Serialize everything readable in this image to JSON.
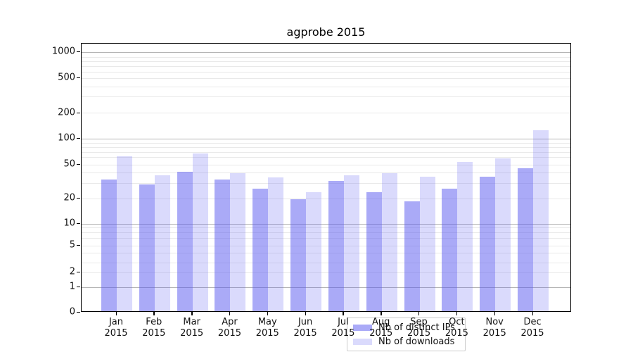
{
  "chart_data": {
    "type": "bar",
    "title": "agprobe 2015",
    "categories": [
      "Jan\n2015",
      "Feb\n2015",
      "Mar\n2015",
      "Apr\n2015",
      "May\n2015",
      "Jun\n2015",
      "Jul\n2015",
      "Aug\n2015",
      "Sep\n2015",
      "Oct\n2015",
      "Nov\n2015",
      "Dec\n2015"
    ],
    "series": [
      {
        "name": "Nb of distinct IPs",
        "color": "rgba(85,85,240,0.50)",
        "values": [
          32,
          28,
          40,
          32,
          25,
          19,
          31,
          23,
          18,
          25,
          35,
          44
        ]
      },
      {
        "name": "Nb of downloads",
        "color": "rgba(85,85,240,0.22)",
        "values": [
          60,
          36,
          65,
          38,
          34,
          23,
          36,
          38,
          35,
          52,
          57,
          120
        ]
      }
    ],
    "xlabel": "",
    "ylabel": "",
    "yscale": "log (symlog near zero)",
    "ylim": [
      0,
      1400
    ],
    "yticks": [
      "1000",
      "500",
      "200",
      "100",
      "50",
      "20",
      "10",
      "5",
      "2",
      "1",
      "0"
    ],
    "grid": "horizontal, major and minor log lines",
    "legend_position": "lower center"
  },
  "colors": {
    "bar_dark": "rgba(85,85,240,0.50)",
    "bar_light": "rgba(85,85,240,0.22)",
    "grid_major": "#b4b4b4",
    "grid_minor": "#e9e9e9",
    "axis": "#000000",
    "background": "#ffffff"
  }
}
